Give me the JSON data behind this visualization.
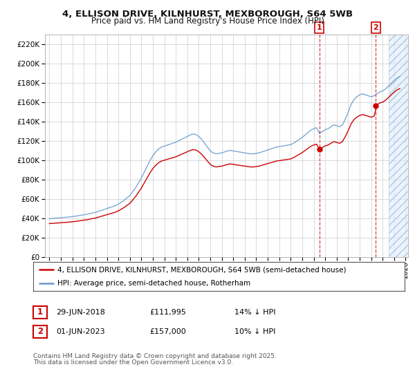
{
  "title1": "4, ELLISON DRIVE, KILNHURST, MEXBOROUGH, S64 5WB",
  "title2": "Price paid vs. HM Land Registry's House Price Index (HPI)",
  "background_color": "#ffffff",
  "plot_bg_color": "#ffffff",
  "grid_color": "#cccccc",
  "hpi_line_color": "#6699cc",
  "price_line_color": "#cc0000",
  "sale1_date": "29-JUN-2018",
  "sale1_price": 111995,
  "sale1_label": "14% ↓ HPI",
  "sale2_date": "01-JUN-2023",
  "sale2_price": 157000,
  "sale2_label": "10% ↓ HPI",
  "legend_label1": "4, ELLISON DRIVE, KILNHURST, MEXBOROUGH, S64 5WB (semi-detached house)",
  "legend_label2": "HPI: Average price, semi-detached house, Rotherham",
  "footer1": "Contains HM Land Registry data © Crown copyright and database right 2025.",
  "footer2": "This data is licensed under the Open Government Licence v3.0.",
  "ylim": [
    0,
    230000
  ],
  "yticks": [
    0,
    20000,
    40000,
    60000,
    80000,
    100000,
    120000,
    140000,
    160000,
    180000,
    200000,
    220000
  ],
  "sale1_x": 2018.49,
  "sale2_x": 2023.41,
  "future_start": 2024.5,
  "xmin": 1994.6,
  "xmax": 2026.2
}
